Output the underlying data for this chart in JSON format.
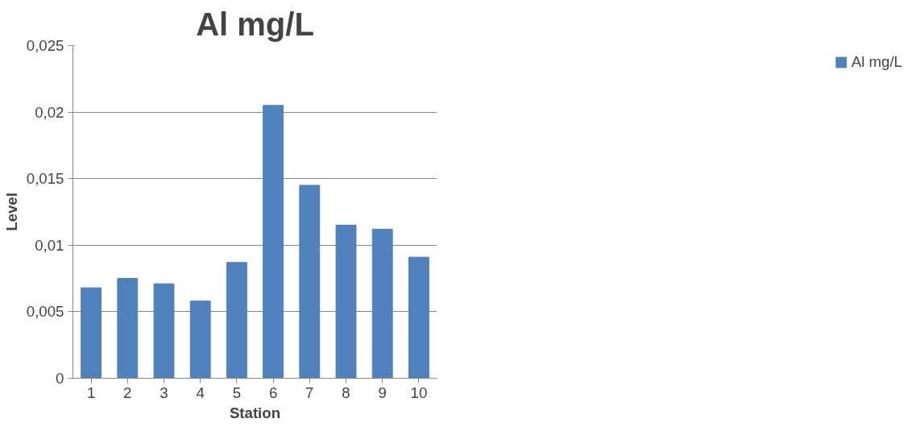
{
  "chart_data": {
    "type": "bar",
    "title": "Al mg/L",
    "xlabel": "Station",
    "ylabel": "Level",
    "categories": [
      "1",
      "2",
      "3",
      "4",
      "5",
      "6",
      "7",
      "8",
      "9",
      "10"
    ],
    "series": [
      {
        "name": "Al mg/L",
        "color": "#4f81bd",
        "values": [
          0.0068,
          0.0075,
          0.0071,
          0.0058,
          0.0087,
          0.0205,
          0.0145,
          0.0115,
          0.0112,
          0.0091
        ]
      }
    ],
    "ylim": [
      0,
      0.025
    ],
    "yticks": [
      {
        "value": 0,
        "label": "0"
      },
      {
        "value": 0.005,
        "label": "0,005"
      },
      {
        "value": 0.01,
        "label": "0,01"
      },
      {
        "value": 0.015,
        "label": "0,015"
      },
      {
        "value": 0.02,
        "label": "0,02"
      },
      {
        "value": 0.025,
        "label": "0,025"
      }
    ],
    "grid": "y",
    "legend": "right"
  }
}
